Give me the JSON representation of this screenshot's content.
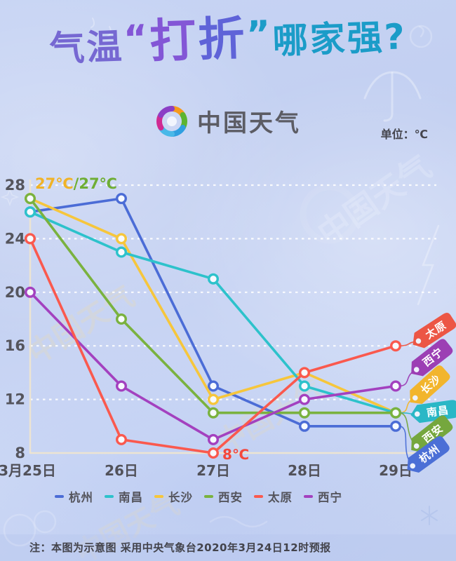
{
  "header": {
    "title_part1": "气温",
    "title_quote_open": "“",
    "title_part2a": "打",
    "title_part2b": "折",
    "title_quote_close": "”",
    "title_part3": "哪家强?",
    "brand_name": "中国天气",
    "unit_label": "单位：℃"
  },
  "background": {
    "watermark_text": "中国天气"
  },
  "chart_data": {
    "type": "line",
    "title": "气温“打折”哪家强?",
    "unit": "℃",
    "categories": [
      "3月25日",
      "26日",
      "27日",
      "28日",
      "29日"
    ],
    "y_ticks": [
      28,
      24,
      20,
      16,
      12,
      8
    ],
    "ylim": [
      8,
      28
    ],
    "grid": "horizontal-white-dashed",
    "legend_position": "bottom",
    "series": [
      {
        "key": "hangzhou",
        "name": "杭州",
        "color": "#4b6cd6",
        "values": [
          26,
          27,
          13,
          10,
          10
        ]
      },
      {
        "key": "changsha",
        "name": "长沙",
        "color": "#f6c63c",
        "values": [
          27,
          24,
          12,
          14,
          11
        ]
      },
      {
        "key": "nanchang",
        "name": "南昌",
        "color": "#2dc2cb",
        "values": [
          26,
          23,
          21,
          13,
          11
        ]
      },
      {
        "key": "xian",
        "name": "西安",
        "color": "#7ab23f",
        "values": [
          27,
          18,
          11,
          11,
          11
        ]
      },
      {
        "key": "xining",
        "name": "西宁",
        "color": "#a341bf",
        "values": [
          20,
          13,
          9,
          12,
          13
        ]
      },
      {
        "key": "taiyuan",
        "name": "太原",
        "color": "#fa594e",
        "values": [
          24,
          9,
          8,
          14,
          16
        ]
      }
    ],
    "annotations": [
      {
        "text": "27℃",
        "color": "#f0b327",
        "refers_to": "长沙 3月25日"
      },
      {
        "text": "/27℃",
        "color": "#6fae35",
        "refers_to": "西安 3月25日"
      },
      {
        "text": "8℃",
        "color": "#f4473c",
        "refers_to": "太原 27日"
      }
    ],
    "end_tags": [
      {
        "key": "taiyuan",
        "label": "太原",
        "color": "#ec5645",
        "value": 16
      },
      {
        "key": "xining",
        "label": "西宁",
        "color": "#9c3fb4",
        "value": 13
      },
      {
        "key": "changsha",
        "label": "长沙",
        "color": "#f2b52d",
        "value": 11
      },
      {
        "key": "nanchang",
        "label": "南昌",
        "color": "#2ab7c6",
        "value": 11
      },
      {
        "key": "xian",
        "label": "西安",
        "color": "#75a73e",
        "value": 11
      },
      {
        "key": "hangzhou",
        "label": "杭州",
        "color": "#4b6fd6",
        "value": 10
      }
    ]
  },
  "legend": {
    "items": [
      {
        "label": "杭州",
        "color": "#4b6cd6"
      },
      {
        "label": "南昌",
        "color": "#2dc2cb"
      },
      {
        "label": "长沙",
        "color": "#f6c63c"
      },
      {
        "label": "西安",
        "color": "#7ab23f"
      },
      {
        "label": "太原",
        "color": "#fa594e"
      },
      {
        "label": "西宁",
        "color": "#a341bf"
      }
    ]
  },
  "footer": {
    "note": "注：本图为示意图 采用中央气象台2020年3月24日12时预报"
  }
}
